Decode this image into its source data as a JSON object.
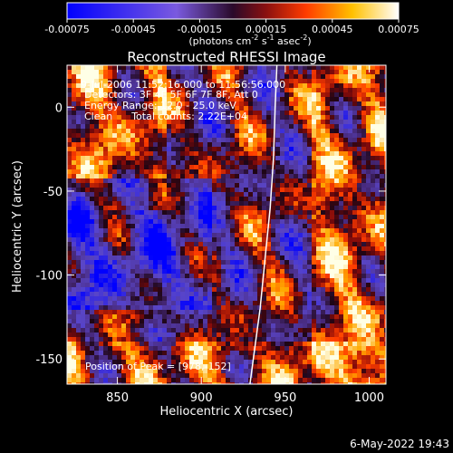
{
  "chart_data": {
    "type": "heatmap",
    "title": "Reconstructed RHESSI Image",
    "xlabel": "Heliocentric X (arcsec)",
    "ylabel": "Heliocentric Y (arcsec)",
    "xlim": [
      820,
      1010
    ],
    "ylim": [
      -165,
      25
    ],
    "x_ticks": [
      850,
      900,
      950,
      1000
    ],
    "y_ticks": [
      0,
      -50,
      -100,
      -150
    ],
    "colorbar": {
      "range": [
        -0.00075,
        0.00075
      ],
      "ticks": [
        "-0.00075",
        "-0.00045",
        "-0.00015",
        "0.00015",
        "0.00045",
        "0.00075"
      ],
      "unit_label": "(photons cm",
      "unit_sup1": "-2",
      "unit_mid1": " s",
      "unit_sup2": "-1",
      "unit_mid2": " asec",
      "unit_sup3": "-2",
      "unit_end": ")"
    },
    "annotations": [
      "9-Jul-2006 11:52:16.000 to 11:56:56.000",
      "Detectors: 3F 4F 5F 6F 7F 8F, Att 0",
      "Energy Range: 12.0 - 25.0 keV",
      "Clean      Total counts: 2.22E+04"
    ],
    "peak_label": "Position of Peak = [978,-152]",
    "peak": [
      978,
      -152
    ],
    "limb_curve": [
      [
        945,
        25
      ],
      [
        944,
        0
      ],
      [
        943,
        -30
      ],
      [
        941,
        -60
      ],
      [
        938,
        -90
      ],
      [
        935,
        -120
      ],
      [
        931,
        -150
      ],
      [
        929,
        -165
      ]
    ],
    "grid": false
  },
  "footer": {
    "date": "6-May-2022 19:43"
  }
}
